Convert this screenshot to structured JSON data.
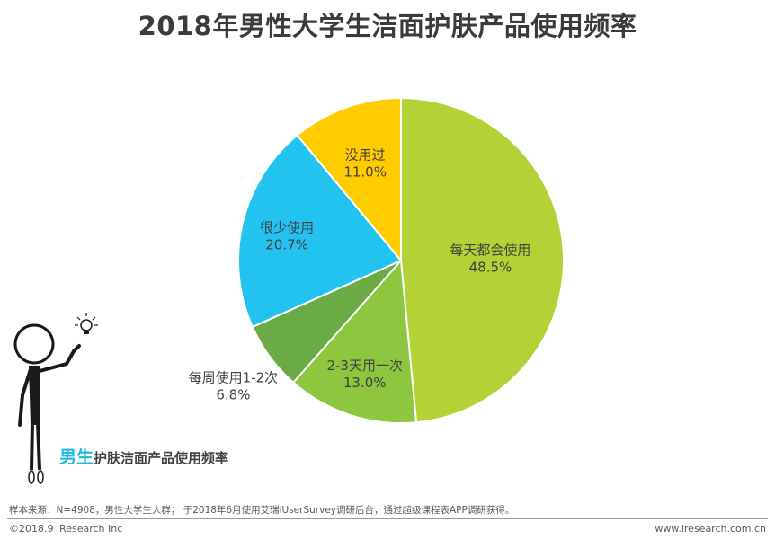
{
  "header": {
    "title": "2018年男性大学生洁面护肤产品使用频率"
  },
  "chart_data": {
    "type": "pie",
    "title": "2018年男性大学生洁面护肤产品使用频率",
    "start": "top",
    "direction": "clockwise",
    "slices": [
      {
        "label": "每天都会使用",
        "value": 48.5,
        "display": "48.5%",
        "color": "#b2d235"
      },
      {
        "label": "2-3天用一次",
        "value": 13.0,
        "display": "13.0%",
        "color": "#8dc63f"
      },
      {
        "label": "每周使用1-2次",
        "value": 6.8,
        "display": "6.8%",
        "color": "#6aab45"
      },
      {
        "label": "很少使用",
        "value": 20.7,
        "display": "20.7%",
        "color": "#22c4ef"
      },
      {
        "label": "没用过",
        "value": 11.0,
        "display": "11.0%",
        "color": "#ffcc00"
      }
    ]
  },
  "caption": {
    "highlight": "男生",
    "rest": "护肤洁面产品使用频率"
  },
  "footer": {
    "source": "样本来源：N=4908，男性大学生人群；  于2018年6月使用艾瑞iUserSurvey调研后台，通过超级课程表APP调研获得。",
    "copyright": "©2018.9 iResearch Inc",
    "website": "www.iresearch.com.cn"
  },
  "icons": {
    "person": "stick-figure-icon",
    "idea": "lightbulb-icon"
  }
}
